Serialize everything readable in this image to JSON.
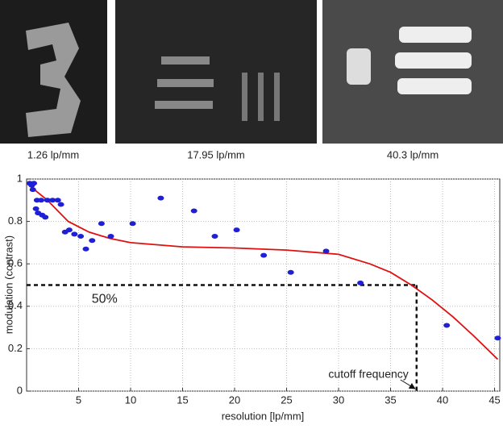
{
  "images": [
    {
      "caption": "1.26 lp/mm"
    },
    {
      "caption": "17.95 lp/mm"
    },
    {
      "caption": "40.3 lp/mm"
    }
  ],
  "chart_data": {
    "type": "scatter",
    "xlabel": "resolution [lp/mm]",
    "ylabel": "modulation (contrast)",
    "xlim": [
      0,
      45.5
    ],
    "ylim": [
      0,
      1
    ],
    "xticks": [
      5,
      10,
      15,
      20,
      25,
      30,
      35,
      40,
      45
    ],
    "yticks": [
      0,
      0.2,
      0.4,
      0.6,
      0.8,
      1
    ],
    "grid": true,
    "points": {
      "color": "#1f1fd6",
      "x": [
        0.3,
        0.5,
        0.6,
        0.7,
        0.9,
        1.0,
        1.1,
        1.4,
        1.5,
        1.8,
        2.0,
        2.5,
        3.0,
        3.3,
        3.7,
        4.1,
        4.6,
        5.2,
        5.7,
        6.3,
        7.2,
        8.1,
        10.2,
        12.9,
        16.1,
        18.1,
        20.2,
        22.8,
        25.4,
        28.8,
        32.1,
        40.4,
        45.3
      ],
      "values": [
        0.98,
        0.97,
        0.95,
        0.98,
        0.86,
        0.9,
        0.84,
        0.9,
        0.83,
        0.82,
        0.9,
        0.9,
        0.9,
        0.88,
        0.75,
        0.76,
        0.74,
        0.73,
        0.67,
        0.71,
        0.79,
        0.73,
        0.79,
        0.91,
        0.85,
        0.73,
        0.76,
        0.64,
        0.56,
        0.66,
        0.51,
        0.31,
        0.25
      ]
    },
    "fit": {
      "color": "#e01010",
      "x": [
        0,
        2,
        4,
        6,
        8,
        10,
        15,
        20,
        25,
        30,
        33,
        35,
        37,
        39,
        41,
        43,
        45.3
      ],
      "values": [
        0.98,
        0.9,
        0.8,
        0.75,
        0.72,
        0.7,
        0.68,
        0.675,
        0.665,
        0.645,
        0.6,
        0.56,
        0.5,
        0.43,
        0.35,
        0.26,
        0.15
      ]
    },
    "threshold": {
      "y": 0.5,
      "x": 37.5
    },
    "annotations": [
      "50%",
      "cutoff frequency"
    ]
  }
}
